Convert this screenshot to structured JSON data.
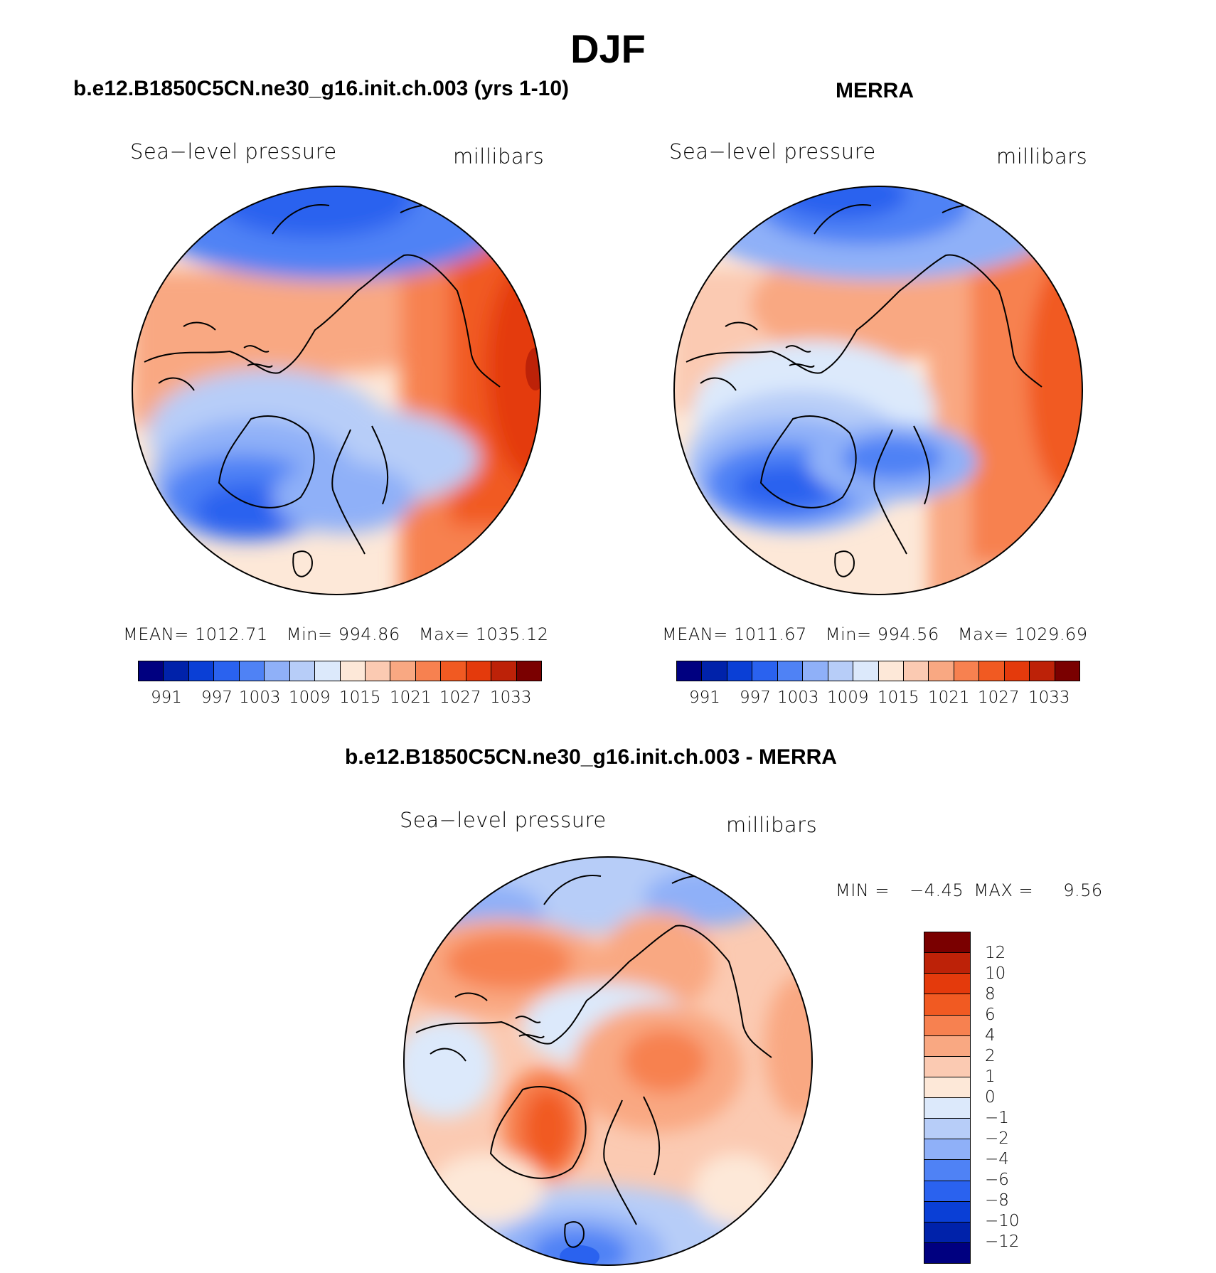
{
  "figure": {
    "title": "DJF",
    "panels": [
      {
        "title": "b.e12.B1850C5CN.ne30_g16.init.ch.003 (yrs 1-10)",
        "variable": "Sea−level pressure",
        "units": "millibars",
        "stats": {
          "mean_label": "MEAN=",
          "mean": "1012.71",
          "min_label": "Min=",
          "min": "994.86",
          "max_label": "Max=",
          "max": "1035.12"
        },
        "colorbar_ticks": [
          "991",
          "997",
          "1003",
          "1009",
          "1015",
          "1021",
          "1027",
          "1033"
        ]
      },
      {
        "title": "MERRA",
        "variable": "Sea−level pressure",
        "units": "millibars",
        "stats": {
          "mean_label": "MEAN=",
          "mean": "1011.67",
          "min_label": "Min=",
          "min": "994.56",
          "max_label": "Max=",
          "max": "1029.69"
        },
        "colorbar_ticks": [
          "991",
          "997",
          "1003",
          "1009",
          "1015",
          "1021",
          "1027",
          "1033"
        ]
      },
      {
        "title": "b.e12.B1850C5CN.ne30_g16.init.ch.003 - MERRA",
        "variable": "Sea−level pressure",
        "units": "millibars",
        "stats": {
          "min_label": "MIN =",
          "min": "−4.45",
          "max_label": "MAX =",
          "max": "9.56"
        },
        "colorbar_ticks": [
          "12",
          "10",
          "8",
          "6",
          "4",
          "2",
          "1",
          "0",
          "−1",
          "−2",
          "−4",
          "−6",
          "−8",
          "−10",
          "−12"
        ]
      }
    ],
    "colors": {
      "pressure_scale": [
        "#000080",
        "#0022aa",
        "#0a3fd6",
        "#2a62ef",
        "#4f82f5",
        "#8fb0f8",
        "#b7cdf8",
        "#dce9fb",
        "#fde8d8",
        "#fbcab2",
        "#f9a882",
        "#f78150",
        "#f15a22",
        "#e43a0c",
        "#bd2208",
        "#7a0000"
      ],
      "difference_scale": [
        "#000080",
        "#0022aa",
        "#0a3fd6",
        "#2a62ef",
        "#4f82f5",
        "#8fb0f8",
        "#b7cdf8",
        "#dce9fb",
        "#fde8d8",
        "#fbcab2",
        "#f9a882",
        "#f78150",
        "#f15a22",
        "#e43a0c",
        "#bd2208",
        "#7a0000"
      ]
    }
  }
}
